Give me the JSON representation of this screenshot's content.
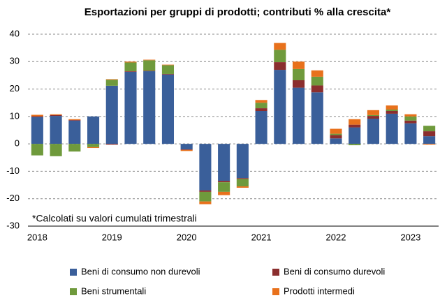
{
  "chart_data": {
    "type": "stacked_bar",
    "title": "Esportazioni per gruppi di prodotti; contributi % alla crescita*",
    "annotation": "*Calcolati su valori cumulati trimestrali",
    "categories": [
      "2018",
      null,
      null,
      null,
      "2019",
      null,
      null,
      null,
      "2020",
      null,
      null,
      null,
      "2021",
      null,
      null,
      null,
      "2022",
      null,
      null,
      null,
      "2023",
      null
    ],
    "series": [
      {
        "name": "Beni di consumo non durevoli",
        "color": "#3a5f9a",
        "values": [
          9.8,
          10.2,
          8.5,
          10,
          21.2,
          26.3,
          26.5,
          25.3,
          -2,
          -17,
          -13.5,
          -12.5,
          12,
          27,
          20.5,
          18.8,
          2,
          6,
          9.2,
          11,
          7.5,
          2.8
        ]
      },
      {
        "name": "Beni di consumo durevoli",
        "color": "#8b2e2e",
        "values": [
          0.3,
          0.3,
          0.2,
          0,
          -0.3,
          0.2,
          0.2,
          0.2,
          -0.2,
          -0.5,
          -0.5,
          -0.3,
          1,
          2.8,
          2.7,
          2.5,
          1.2,
          1,
          1,
          1,
          1,
          1.8
        ]
      },
      {
        "name": "Beni strumentali",
        "color": "#6f9a3c",
        "values": [
          -4.2,
          -4.5,
          -2.8,
          -1.2,
          2.2,
          3.2,
          3.8,
          3.2,
          0,
          -3.5,
          -3.5,
          -2.7,
          2,
          4.5,
          4.1,
          3.2,
          0.5,
          -0.5,
          0.3,
          0.5,
          1.5,
          2
        ]
      },
      {
        "name": "Prodotti intermedi",
        "color": "#e8711c",
        "values": [
          0.5,
          0.3,
          0.3,
          -0.3,
          0.2,
          0.3,
          0.2,
          0.2,
          -0.4,
          -1,
          -1.2,
          -0.5,
          1,
          2.5,
          2.7,
          2.3,
          1.8,
          2,
          1.8,
          1.5,
          0.8,
          -0.3
        ]
      }
    ],
    "ylim": [
      -30,
      40
    ],
    "yticks": [
      -30,
      -20,
      -10,
      0,
      10,
      20,
      30,
      40
    ],
    "grid": true,
    "legend": "bottom"
  }
}
